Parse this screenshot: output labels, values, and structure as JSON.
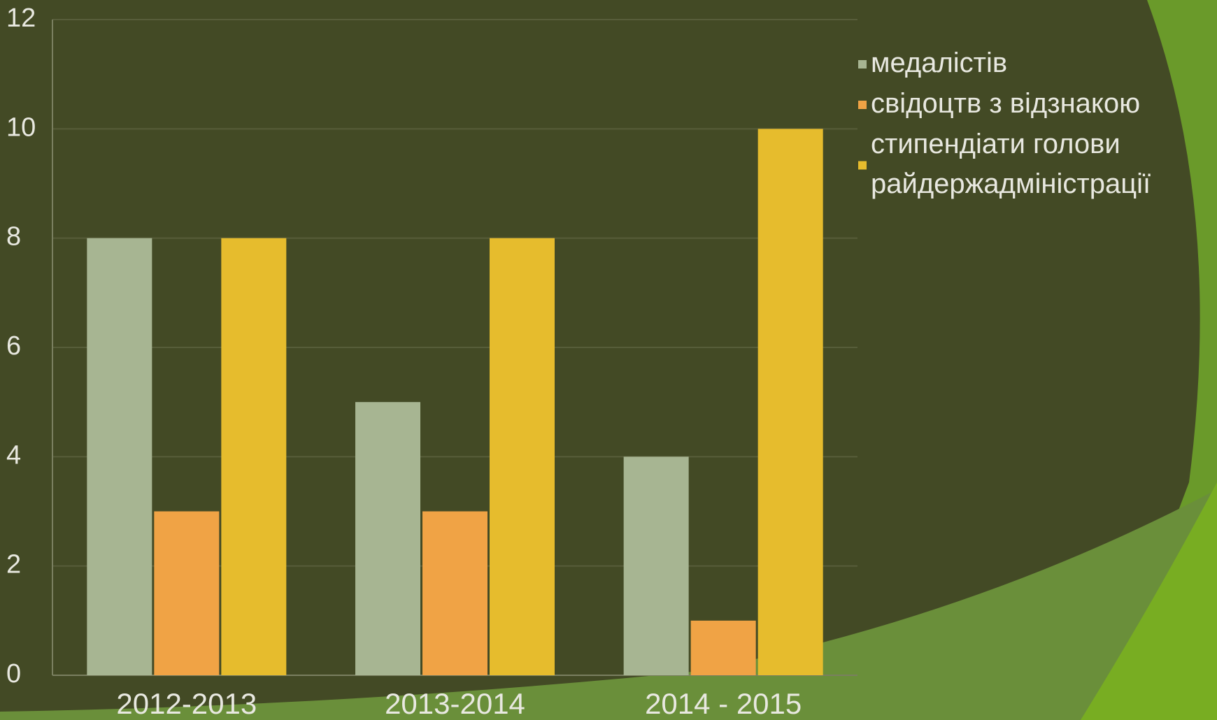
{
  "chart_data": {
    "type": "bar",
    "categories": [
      "2012-2013",
      "2013-2014",
      "2014 - 2015"
    ],
    "series": [
      {
        "name": "медалістів",
        "color": "#a7b592",
        "values": [
          8,
          5,
          4
        ]
      },
      {
        "name": "свідоцтв з відзнакою",
        "color": "#f0a345",
        "values": [
          3,
          3,
          1
        ]
      },
      {
        "name": "стипендіати голови райдержадміністрації",
        "color": "#e6bc2d",
        "values": [
          8,
          8,
          10
        ]
      }
    ],
    "ylim": [
      0,
      12
    ],
    "yticks": [
      0,
      2,
      4,
      6,
      8,
      10,
      12
    ],
    "grid": true,
    "legend": "right"
  }
}
